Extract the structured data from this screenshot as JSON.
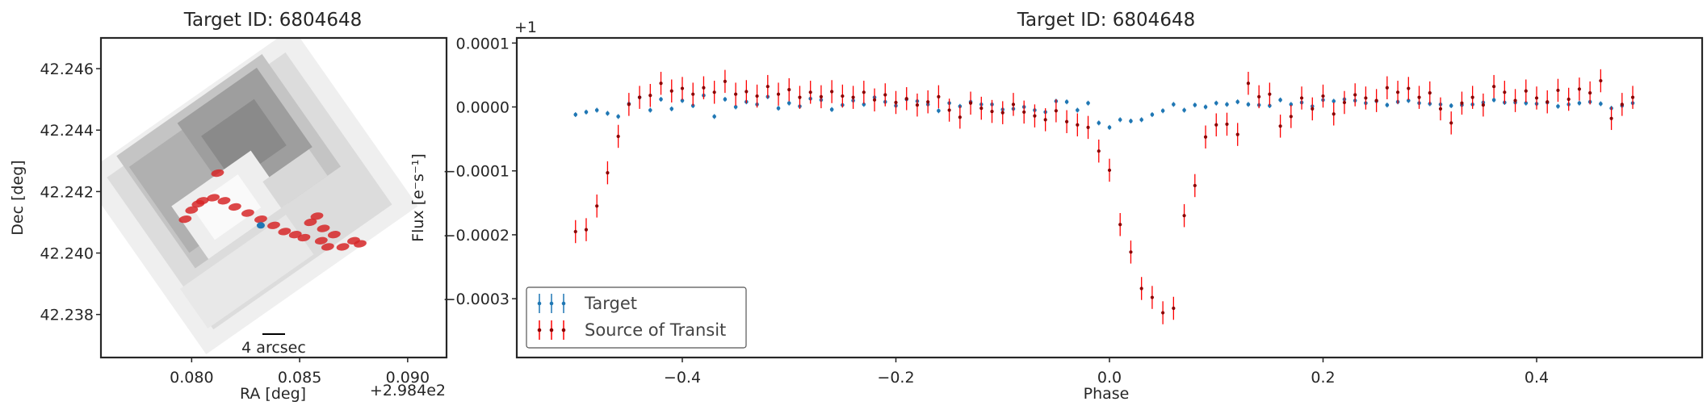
{
  "chart_data": [
    {
      "type": "scatter",
      "title": "Target ID: 6804648",
      "xlabel": "RA [deg]",
      "ylabel": "Dec [deg]",
      "x_offset_label": "+2.984e2",
      "xlim": [
        0.0758,
        0.0918
      ],
      "ylim": [
        42.2366,
        42.247
      ],
      "xticks": [
        "0.080",
        "0.085",
        "0.090"
      ],
      "xtick_values": [
        0.08,
        0.085,
        0.09
      ],
      "yticks": [
        "42.238",
        "42.240",
        "42.242",
        "42.244",
        "42.246"
      ],
      "ytick_values": [
        42.238,
        42.24,
        42.242,
        42.244,
        42.246
      ],
      "scalebar_label": "4 arcsec",
      "background": "grayscale pixel-tile image, rotated ~35 degrees",
      "series": [
        {
          "color": "#d62728",
          "points": [
            [
              0.0812,
              42.2426
            ],
            [
              0.0797,
              42.2411
            ],
            [
              0.08,
              42.2414
            ],
            [
              0.0803,
              42.2416
            ],
            [
              0.0805,
              42.2417
            ],
            [
              0.081,
              42.2418
            ],
            [
              0.0815,
              42.2417
            ],
            [
              0.082,
              42.2415
            ],
            [
              0.0826,
              42.2413
            ],
            [
              0.0832,
              42.2411
            ],
            [
              0.0838,
              42.2409
            ],
            [
              0.0843,
              42.2407
            ],
            [
              0.0848,
              42.2406
            ],
            [
              0.0852,
              42.2405
            ],
            [
              0.0855,
              42.241
            ],
            [
              0.0858,
              42.2412
            ],
            [
              0.0861,
              42.2408
            ],
            [
              0.086,
              42.2404
            ],
            [
              0.0863,
              42.2402
            ],
            [
              0.0866,
              42.2406
            ],
            [
              0.087,
              42.2402
            ],
            [
              0.0875,
              42.2404
            ],
            [
              0.0878,
              42.2403
            ]
          ]
        },
        {
          "color": "#1f77b4",
          "points": [
            [
              0.0832,
              42.2409
            ]
          ]
        }
      ]
    },
    {
      "type": "scatter",
      "title": "Target ID: 6804648",
      "xlabel": "Phase",
      "ylabel": "Flux [e⁻s⁻¹]",
      "y_offset_label": "+1",
      "xlim": [
        -0.555,
        0.555
      ],
      "ylim": [
        -0.000392,
        0.000108
      ],
      "xticks": [
        "−0.4",
        "−0.2",
        "0.0",
        "0.2",
        "0.4"
      ],
      "xtick_values": [
        -0.4,
        -0.2,
        0.0,
        0.2,
        0.4
      ],
      "yticks": [
        "0.0001",
        "0.0000",
        "−0.0001",
        "−0.0002",
        "−0.0003"
      ],
      "ytick_values": [
        0.0001,
        0.0,
        -0.0001,
        -0.0002,
        -0.0003
      ],
      "grid": false,
      "legend_position": "lower-left",
      "series": [
        {
          "name": "Target",
          "color": "#1f77b4",
          "x": [
            -0.5,
            -0.49,
            -0.48,
            -0.47,
            -0.46,
            -0.45,
            -0.44,
            -0.43,
            -0.42,
            -0.41,
            -0.4,
            -0.39,
            -0.38,
            -0.37,
            -0.36,
            -0.35,
            -0.34,
            -0.33,
            -0.32,
            -0.31,
            -0.3,
            -0.29,
            -0.28,
            -0.27,
            -0.26,
            -0.25,
            -0.24,
            -0.23,
            -0.22,
            -0.21,
            -0.2,
            -0.19,
            -0.18,
            -0.17,
            -0.16,
            -0.15,
            -0.14,
            -0.13,
            -0.12,
            -0.11,
            -0.1,
            -0.09,
            -0.08,
            -0.07,
            -0.06,
            -0.05,
            -0.04,
            -0.03,
            -0.02,
            -0.01,
            0.0,
            0.01,
            0.02,
            0.03,
            0.04,
            0.05,
            0.06,
            0.07,
            0.08,
            0.09,
            0.1,
            0.11,
            0.12,
            0.13,
            0.14,
            0.15,
            0.16,
            0.17,
            0.18,
            0.19,
            0.2,
            0.21,
            0.22,
            0.23,
            0.24,
            0.25,
            0.26,
            0.27,
            0.28,
            0.29,
            0.3,
            0.31,
            0.32,
            0.33,
            0.34,
            0.35,
            0.36,
            0.37,
            0.38,
            0.39,
            0.4,
            0.41,
            0.42,
            0.43,
            0.44,
            0.45,
            0.46,
            0.47,
            0.48,
            0.49
          ],
          "y": [
            -1.2e-05,
            -8e-06,
            -5e-06,
            -1e-05,
            -1.5e-05,
            5e-06,
            1.5e-05,
            -5e-06,
            1.2e-05,
            -3e-06,
            1e-05,
            2e-06,
            1.8e-05,
            -1.5e-05,
            1.2e-05,
            0.0,
            8e-06,
            4e-06,
            1.6e-05,
            -2e-06,
            6e-06,
            1e-06,
            1.3e-05,
            1.1e-05,
            -4e-06,
            3e-06,
            1e-05,
            4e-06,
            1.5e-05,
            8e-06,
            2e-06,
            1.2e-05,
            9e-06,
            4e-06,
            -6e-06,
            6e-06,
            1e-06,
            8e-06,
            4e-06,
            4e-06,
            -4e-06,
            -3e-06,
            0.0,
            -5e-06,
            -8e-06,
            9e-06,
            8e-06,
            -5e-06,
            6e-06,
            -2.5e-05,
            -3.2e-05,
            -2e-05,
            -2.2e-05,
            -2e-05,
            -1.2e-05,
            -6e-06,
            4e-06,
            -5e-06,
            3e-06,
            0.0,
            6e-06,
            4e-06,
            8e-06,
            4e-06,
            3e-06,
            2e-06,
            1.1e-05,
            4e-06,
            7e-06,
            1e-06,
            1.1e-05,
            9e-06,
            1.2e-05,
            1e-05,
            6e-06,
            9e-06,
            3e-06,
            8e-06,
            1e-05,
            6e-06,
            5e-06,
            4e-06,
            2e-06,
            3e-06,
            4e-06,
            7e-06,
            1.1e-05,
            7e-06,
            7e-06,
            6e-06,
            5e-06,
            7e-06,
            1e-06,
            4e-06,
            6e-06,
            8e-06,
            5e-06,
            -2e-06,
            2e-06,
            6e-06
          ]
        },
        {
          "name": "Source of Transit",
          "color": "#ff0000",
          "x": [
            -0.5,
            -0.49,
            -0.48,
            -0.47,
            -0.46,
            -0.45,
            -0.44,
            -0.43,
            -0.42,
            -0.41,
            -0.4,
            -0.39,
            -0.38,
            -0.37,
            -0.36,
            -0.35,
            -0.34,
            -0.33,
            -0.32,
            -0.31,
            -0.3,
            -0.29,
            -0.28,
            -0.27,
            -0.26,
            -0.25,
            -0.24,
            -0.23,
            -0.22,
            -0.21,
            -0.2,
            -0.19,
            -0.18,
            -0.17,
            -0.16,
            -0.15,
            -0.14,
            -0.13,
            -0.12,
            -0.11,
            -0.1,
            -0.09,
            -0.08,
            -0.07,
            -0.06,
            -0.05,
            -0.04,
            -0.03,
            -0.02,
            -0.01,
            0.0,
            0.01,
            0.02,
            0.03,
            0.04,
            0.05,
            0.06,
            0.07,
            0.08,
            0.09,
            0.1,
            0.11,
            0.12,
            0.13,
            0.14,
            0.15,
            0.16,
            0.17,
            0.18,
            0.19,
            0.2,
            0.21,
            0.22,
            0.23,
            0.24,
            0.25,
            0.26,
            0.27,
            0.28,
            0.29,
            0.3,
            0.31,
            0.32,
            0.33,
            0.34,
            0.35,
            0.36,
            0.37,
            0.38,
            0.39,
            0.4,
            0.41,
            0.42,
            0.43,
            0.44,
            0.45,
            0.46,
            0.47,
            0.48,
            0.49
          ],
          "y": [
            -0.000195,
            -0.000192,
            -0.000155,
            -0.000103,
            -4.6e-05,
            4e-06,
            1.5e-05,
            1.8e-05,
            3.7e-05,
            2.5e-05,
            2.9e-05,
            2e-05,
            3e-05,
            2.3e-05,
            4e-05,
            2e-05,
            2.4e-05,
            1.7e-05,
            3.2e-05,
            2e-05,
            2.7e-05,
            1.5e-05,
            2.3e-05,
            1.6e-05,
            2.4e-05,
            1.7e-05,
            1.5e-05,
            2.3e-05,
            1.1e-05,
            1.9e-05,
            7e-06,
            1.3e-05,
            3e-06,
            8e-06,
            1.6e-05,
            -5e-06,
            -1.6e-05,
            6e-06,
            -2e-06,
            -7e-06,
            -9e-06,
            4e-06,
            -8e-06,
            -1.4e-05,
            -2e-05,
            -6e-06,
            -2.3e-05,
            -2.8e-05,
            -3.2e-05,
            -6.9e-05,
            -9.9e-05,
            -0.000184,
            -0.000227,
            -0.000284,
            -0.000298,
            -0.000322,
            -0.000315,
            -0.00017,
            -0.000123,
            -4.7e-05,
            -2.8e-05,
            -2.7e-05,
            -4.3e-05,
            3.7e-05,
            1.6e-05,
            2e-05,
            -3e-05,
            -1.5e-05,
            1.4e-05,
            -3e-06,
            1.7e-05,
            -1.1e-05,
            7e-06,
            1.9e-05,
            1.4e-05,
            1e-05,
            3e-05,
            2.3e-05,
            2.9e-05,
            1.5e-05,
            2.2e-05,
            -3e-06,
            -2.5e-05,
            6e-06,
            1.5e-05,
            3e-06,
            3.2e-05,
            2.3e-05,
            1e-05,
            2.5e-05,
            1.4e-05,
            8e-06,
            2.6e-05,
            1.2e-05,
            2.8e-05,
            2.2e-05,
            4.1e-05,
            -1.8e-05,
            4e-06,
            1.5e-05
          ],
          "yerr": 1.8e-05
        }
      ]
    }
  ]
}
